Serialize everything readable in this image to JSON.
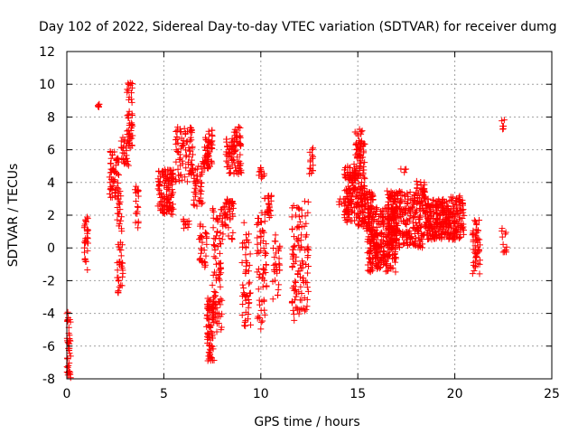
{
  "chart_data": {
    "type": "scatter",
    "title": "Day 102 of 2022, Sidereal Day-to-day VTEC variation (SDTVAR) for receiver dumg",
    "xlabel": "GPS time / hours",
    "ylabel": "SDTVAR / TECUs",
    "xlim": [
      0,
      25
    ],
    "ylim": [
      -8,
      12
    ],
    "xticks": [
      "0",
      "5",
      "10",
      "15",
      "20",
      "25"
    ],
    "yticks": [
      "-8",
      "-6",
      "-4",
      "-2",
      "0",
      "2",
      "4",
      "6",
      "8",
      "10",
      "12"
    ],
    "grid": true,
    "marker": "+",
    "series_color": "#ff0000",
    "clusters": [
      {
        "x0": 0.0,
        "x1": 0.2,
        "y0": -8.0,
        "y1": -3.8,
        "n": 40
      },
      {
        "x0": 0.9,
        "x1": 1.1,
        "y0": -1.5,
        "y1": 1.9,
        "n": 30
      },
      {
        "x0": 1.6,
        "x1": 1.7,
        "y0": 8.6,
        "y1": 9.0,
        "n": 6
      },
      {
        "x0": 2.2,
        "x1": 2.7,
        "y0": 3.0,
        "y1": 5.9,
        "n": 60
      },
      {
        "x0": 2.6,
        "x1": 2.9,
        "y0": -2.9,
        "y1": 3.5,
        "n": 50
      },
      {
        "x0": 2.8,
        "x1": 3.2,
        "y0": 5.0,
        "y1": 6.8,
        "n": 25
      },
      {
        "x0": 3.1,
        "x1": 3.4,
        "y0": 6.0,
        "y1": 10.3,
        "n": 50
      },
      {
        "x0": 3.5,
        "x1": 3.7,
        "y0": 1.2,
        "y1": 3.9,
        "n": 20
      },
      {
        "x0": 4.7,
        "x1": 5.5,
        "y0": 2.0,
        "y1": 4.8,
        "n": 120
      },
      {
        "x0": 5.6,
        "x1": 6.5,
        "y0": 4.0,
        "y1": 7.4,
        "n": 80
      },
      {
        "x0": 6.0,
        "x1": 6.3,
        "y0": 1.2,
        "y1": 1.8,
        "n": 10
      },
      {
        "x0": 6.5,
        "x1": 7.0,
        "y0": 2.5,
        "y1": 5.0,
        "n": 40
      },
      {
        "x0": 6.8,
        "x1": 7.3,
        "y0": -1.2,
        "y1": 1.5,
        "n": 30
      },
      {
        "x0": 7.0,
        "x1": 7.5,
        "y0": 4.8,
        "y1": 7.2,
        "n": 60
      },
      {
        "x0": 7.2,
        "x1": 7.6,
        "y0": -7.0,
        "y1": -3.0,
        "n": 80
      },
      {
        "x0": 7.5,
        "x1": 8.0,
        "y0": -5.5,
        "y1": 2.5,
        "n": 80
      },
      {
        "x0": 8.0,
        "x1": 8.6,
        "y0": 0.5,
        "y1": 3.0,
        "n": 50
      },
      {
        "x0": 8.2,
        "x1": 8.6,
        "y0": 4.5,
        "y1": 6.8,
        "n": 40
      },
      {
        "x0": 8.6,
        "x1": 9.0,
        "y0": 4.5,
        "y1": 7.4,
        "n": 50
      },
      {
        "x0": 9.0,
        "x1": 9.5,
        "y0": -5.0,
        "y1": 2.0,
        "n": 50
      },
      {
        "x0": 9.8,
        "x1": 10.3,
        "y0": -5.0,
        "y1": 2.5,
        "n": 60
      },
      {
        "x0": 9.9,
        "x1": 10.2,
        "y0": 4.2,
        "y1": 5.0,
        "n": 12
      },
      {
        "x0": 10.2,
        "x1": 10.6,
        "y0": 1.5,
        "y1": 3.2,
        "n": 25
      },
      {
        "x0": 10.6,
        "x1": 11.0,
        "y0": -3.2,
        "y1": 0.8,
        "n": 30
      },
      {
        "x0": 11.6,
        "x1": 12.1,
        "y0": -4.5,
        "y1": 2.8,
        "n": 70
      },
      {
        "x0": 12.1,
        "x1": 12.5,
        "y0": -4.0,
        "y1": 3.0,
        "n": 40
      },
      {
        "x0": 12.5,
        "x1": 12.7,
        "y0": 4.5,
        "y1": 6.3,
        "n": 15
      },
      {
        "x0": 14.0,
        "x1": 14.3,
        "y0": 2.5,
        "y1": 3.0,
        "n": 6
      },
      {
        "x0": 14.3,
        "x1": 15.0,
        "y0": 1.5,
        "y1": 5.0,
        "n": 120
      },
      {
        "x0": 14.8,
        "x1": 15.4,
        "y0": 3.5,
        "y1": 7.3,
        "n": 80
      },
      {
        "x0": 15.0,
        "x1": 15.8,
        "y0": 1.0,
        "y1": 3.5,
        "n": 100
      },
      {
        "x0": 15.5,
        "x1": 17.0,
        "y0": -1.5,
        "y1": 2.5,
        "n": 300
      },
      {
        "x0": 16.5,
        "x1": 18.5,
        "y0": 0.0,
        "y1": 3.5,
        "n": 280
      },
      {
        "x0": 17.2,
        "x1": 17.5,
        "y0": 4.5,
        "y1": 4.9,
        "n": 4
      },
      {
        "x0": 18.5,
        "x1": 20.5,
        "y0": 0.5,
        "y1": 3.0,
        "n": 300
      },
      {
        "x0": 18.0,
        "x1": 18.5,
        "y0": 3.5,
        "y1": 4.2,
        "n": 15
      },
      {
        "x0": 19.8,
        "x1": 20.3,
        "y0": 2.8,
        "y1": 3.2,
        "n": 10
      },
      {
        "x0": 20.9,
        "x1": 21.3,
        "y0": -1.6,
        "y1": 1.7,
        "n": 50
      },
      {
        "x0": 22.4,
        "x1": 22.6,
        "y0": 7.2,
        "y1": 7.9,
        "n": 6
      },
      {
        "x0": 22.4,
        "x1": 22.7,
        "y0": -0.3,
        "y1": 1.3,
        "n": 12
      }
    ]
  }
}
